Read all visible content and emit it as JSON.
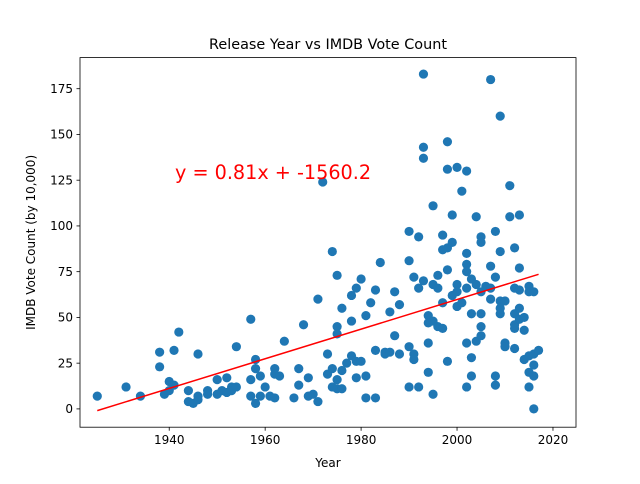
{
  "chart_data": {
    "type": "scatter",
    "title": "Release Year vs IMDB Vote Count",
    "xlabel": "Year",
    "ylabel": "IMDB Vote Count (by 10,000)",
    "xlim": [
      1921.4,
      2024.8
    ],
    "ylim": [
      -10.0,
      192.0
    ],
    "xticks": [
      1940,
      1960,
      1980,
      2000,
      2020
    ],
    "yticks": [
      0,
      25,
      50,
      75,
      100,
      125,
      150,
      175
    ],
    "grid": false,
    "point_color": "#1f77b4",
    "regression": {
      "slope": 0.81,
      "intercept": -1560.2,
      "x_range": [
        1925,
        2017
      ],
      "color": "#ff0000",
      "label": "y = 0.81x + -1560.2"
    },
    "points": [
      [
        1925,
        7
      ],
      [
        1931,
        12
      ],
      [
        1934,
        7
      ],
      [
        1938,
        31
      ],
      [
        1938,
        23
      ],
      [
        1939,
        8
      ],
      [
        1940,
        15
      ],
      [
        1940,
        10
      ],
      [
        1941,
        32
      ],
      [
        1941,
        13
      ],
      [
        1942,
        42
      ],
      [
        1944,
        10
      ],
      [
        1944,
        4
      ],
      [
        1945,
        3
      ],
      [
        1946,
        5
      ],
      [
        1946,
        30
      ],
      [
        1946,
        7
      ],
      [
        1948,
        10
      ],
      [
        1948,
        8
      ],
      [
        1950,
        16
      ],
      [
        1950,
        8
      ],
      [
        1951,
        10
      ],
      [
        1952,
        9
      ],
      [
        1952,
        17
      ],
      [
        1953,
        12
      ],
      [
        1953,
        10
      ],
      [
        1954,
        34
      ],
      [
        1954,
        12
      ],
      [
        1957,
        49
      ],
      [
        1957,
        16
      ],
      [
        1957,
        7
      ],
      [
        1958,
        27
      ],
      [
        1958,
        22
      ],
      [
        1958,
        3
      ],
      [
        1959,
        18
      ],
      [
        1959,
        7
      ],
      [
        1960,
        12
      ],
      [
        1961,
        7
      ],
      [
        1962,
        22
      ],
      [
        1962,
        19
      ],
      [
        1962,
        6
      ],
      [
        1963,
        18
      ],
      [
        1964,
        37
      ],
      [
        1966,
        6
      ],
      [
        1967,
        22
      ],
      [
        1967,
        13
      ],
      [
        1968,
        46
      ],
      [
        1969,
        17
      ],
      [
        1969,
        7
      ],
      [
        1970,
        8
      ],
      [
        1971,
        60
      ],
      [
        1971,
        4
      ],
      [
        1972,
        124
      ],
      [
        1973,
        30
      ],
      [
        1973,
        19
      ],
      [
        1974,
        86
      ],
      [
        1974,
        12
      ],
      [
        1974,
        22
      ],
      [
        1975,
        73
      ],
      [
        1975,
        45
      ],
      [
        1975,
        41
      ],
      [
        1975,
        16
      ],
      [
        1975,
        11
      ],
      [
        1976,
        55
      ],
      [
        1976,
        11
      ],
      [
        1976,
        21
      ],
      [
        1977,
        25
      ],
      [
        1978,
        62
      ],
      [
        1978,
        48
      ],
      [
        1978,
        29
      ],
      [
        1979,
        66
      ],
      [
        1979,
        26
      ],
      [
        1979,
        17
      ],
      [
        1980,
        71
      ],
      [
        1980,
        26
      ],
      [
        1981,
        51
      ],
      [
        1981,
        18
      ],
      [
        1981,
        6
      ],
      [
        1982,
        58
      ],
      [
        1983,
        65
      ],
      [
        1983,
        32
      ],
      [
        1983,
        6
      ],
      [
        1984,
        80
      ],
      [
        1985,
        31
      ],
      [
        1985,
        30
      ],
      [
        1986,
        53
      ],
      [
        1986,
        31
      ],
      [
        1987,
        64
      ],
      [
        1987,
        40
      ],
      [
        1988,
        30
      ],
      [
        1988,
        57
      ],
      [
        1990,
        97
      ],
      [
        1990,
        81
      ],
      [
        1990,
        34
      ],
      [
        1990,
        12
      ],
      [
        1991,
        72
      ],
      [
        1991,
        30
      ],
      [
        1991,
        27
      ],
      [
        1992,
        94
      ],
      [
        1992,
        66
      ],
      [
        1992,
        12
      ],
      [
        1993,
        183
      ],
      [
        1993,
        143
      ],
      [
        1993,
        137
      ],
      [
        1993,
        70
      ],
      [
        1994,
        51
      ],
      [
        1994,
        47
      ],
      [
        1994,
        36
      ],
      [
        1994,
        20
      ],
      [
        1995,
        111
      ],
      [
        1995,
        68
      ],
      [
        1995,
        48
      ],
      [
        1995,
        8
      ],
      [
        1996,
        73
      ],
      [
        1996,
        45
      ],
      [
        1996,
        66
      ],
      [
        1997,
        95
      ],
      [
        1997,
        87
      ],
      [
        1997,
        58
      ],
      [
        1997,
        44
      ],
      [
        1998,
        146
      ],
      [
        1998,
        131
      ],
      [
        1998,
        88
      ],
      [
        1998,
        76
      ],
      [
        1998,
        26
      ],
      [
        1999,
        106
      ],
      [
        1999,
        91
      ],
      [
        1999,
        62
      ],
      [
        2000,
        132
      ],
      [
        2000,
        68
      ],
      [
        2000,
        64
      ],
      [
        2000,
        56
      ],
      [
        2001,
        119
      ],
      [
        2001,
        58
      ],
      [
        2002,
        130
      ],
      [
        2002,
        85
      ],
      [
        2002,
        79
      ],
      [
        2002,
        75
      ],
      [
        2002,
        66
      ],
      [
        2002,
        36
      ],
      [
        2002,
        12
      ],
      [
        2003,
        71
      ],
      [
        2003,
        52
      ],
      [
        2003,
        28
      ],
      [
        2003,
        18
      ],
      [
        2004,
        105
      ],
      [
        2004,
        68
      ],
      [
        2004,
        37
      ],
      [
        2005,
        94
      ],
      [
        2005,
        91
      ],
      [
        2005,
        64
      ],
      [
        2005,
        52
      ],
      [
        2005,
        45
      ],
      [
        2005,
        40
      ],
      [
        2006,
        67
      ],
      [
        2007,
        180
      ],
      [
        2007,
        78
      ],
      [
        2007,
        66
      ],
      [
        2007,
        60
      ],
      [
        2008,
        97
      ],
      [
        2008,
        72
      ],
      [
        2008,
        18
      ],
      [
        2008,
        13
      ],
      [
        2009,
        160
      ],
      [
        2009,
        86
      ],
      [
        2009,
        59
      ],
      [
        2009,
        55
      ],
      [
        2009,
        52
      ],
      [
        2010,
        59
      ],
      [
        2010,
        36
      ],
      [
        2010,
        34
      ],
      [
        2011,
        122
      ],
      [
        2011,
        105
      ],
      [
        2012,
        88
      ],
      [
        2012,
        66
      ],
      [
        2012,
        52
      ],
      [
        2012,
        46
      ],
      [
        2012,
        44
      ],
      [
        2012,
        33
      ],
      [
        2013,
        106
      ],
      [
        2013,
        77
      ],
      [
        2013,
        65
      ],
      [
        2013,
        55
      ],
      [
        2013,
        49
      ],
      [
        2014,
        50
      ],
      [
        2014,
        43
      ],
      [
        2014,
        27
      ],
      [
        2015,
        67
      ],
      [
        2015,
        64
      ],
      [
        2015,
        29
      ],
      [
        2015,
        20
      ],
      [
        2015,
        12
      ],
      [
        2016,
        64
      ],
      [
        2016,
        30
      ],
      [
        2016,
        24
      ],
      [
        2016,
        18
      ],
      [
        2016,
        0
      ],
      [
        2017,
        32
      ]
    ]
  }
}
